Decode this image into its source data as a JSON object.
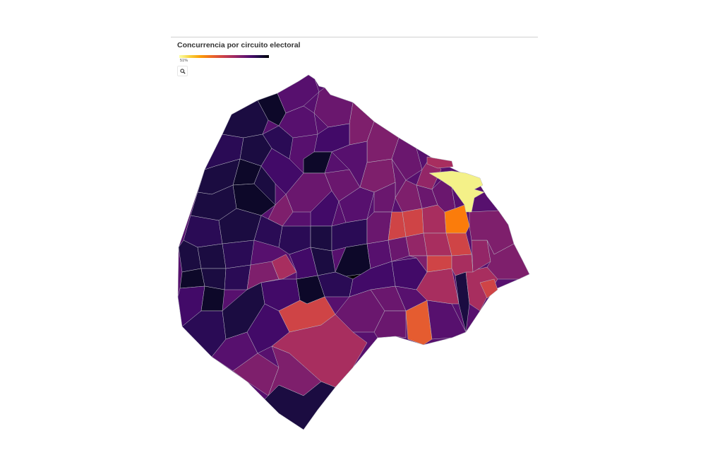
{
  "map": {
    "title": "Concurrencia por circuito electoral",
    "legend_label": "51%",
    "zoom_icon": "search-icon",
    "colors": {
      "c1": "#0d0829",
      "c2": "#1b0c41",
      "c3": "#2a0b55",
      "c4": "#420a68",
      "c5": "#57106e",
      "c6": "#6a176e",
      "c7": "#7e1f6c",
      "c8": "#932667",
      "c9": "#a82e5f",
      "c10": "#cf4446",
      "c11": "#e55c30",
      "c12": "#fb7c0b",
      "c13": "#f4f188"
    }
  }
}
